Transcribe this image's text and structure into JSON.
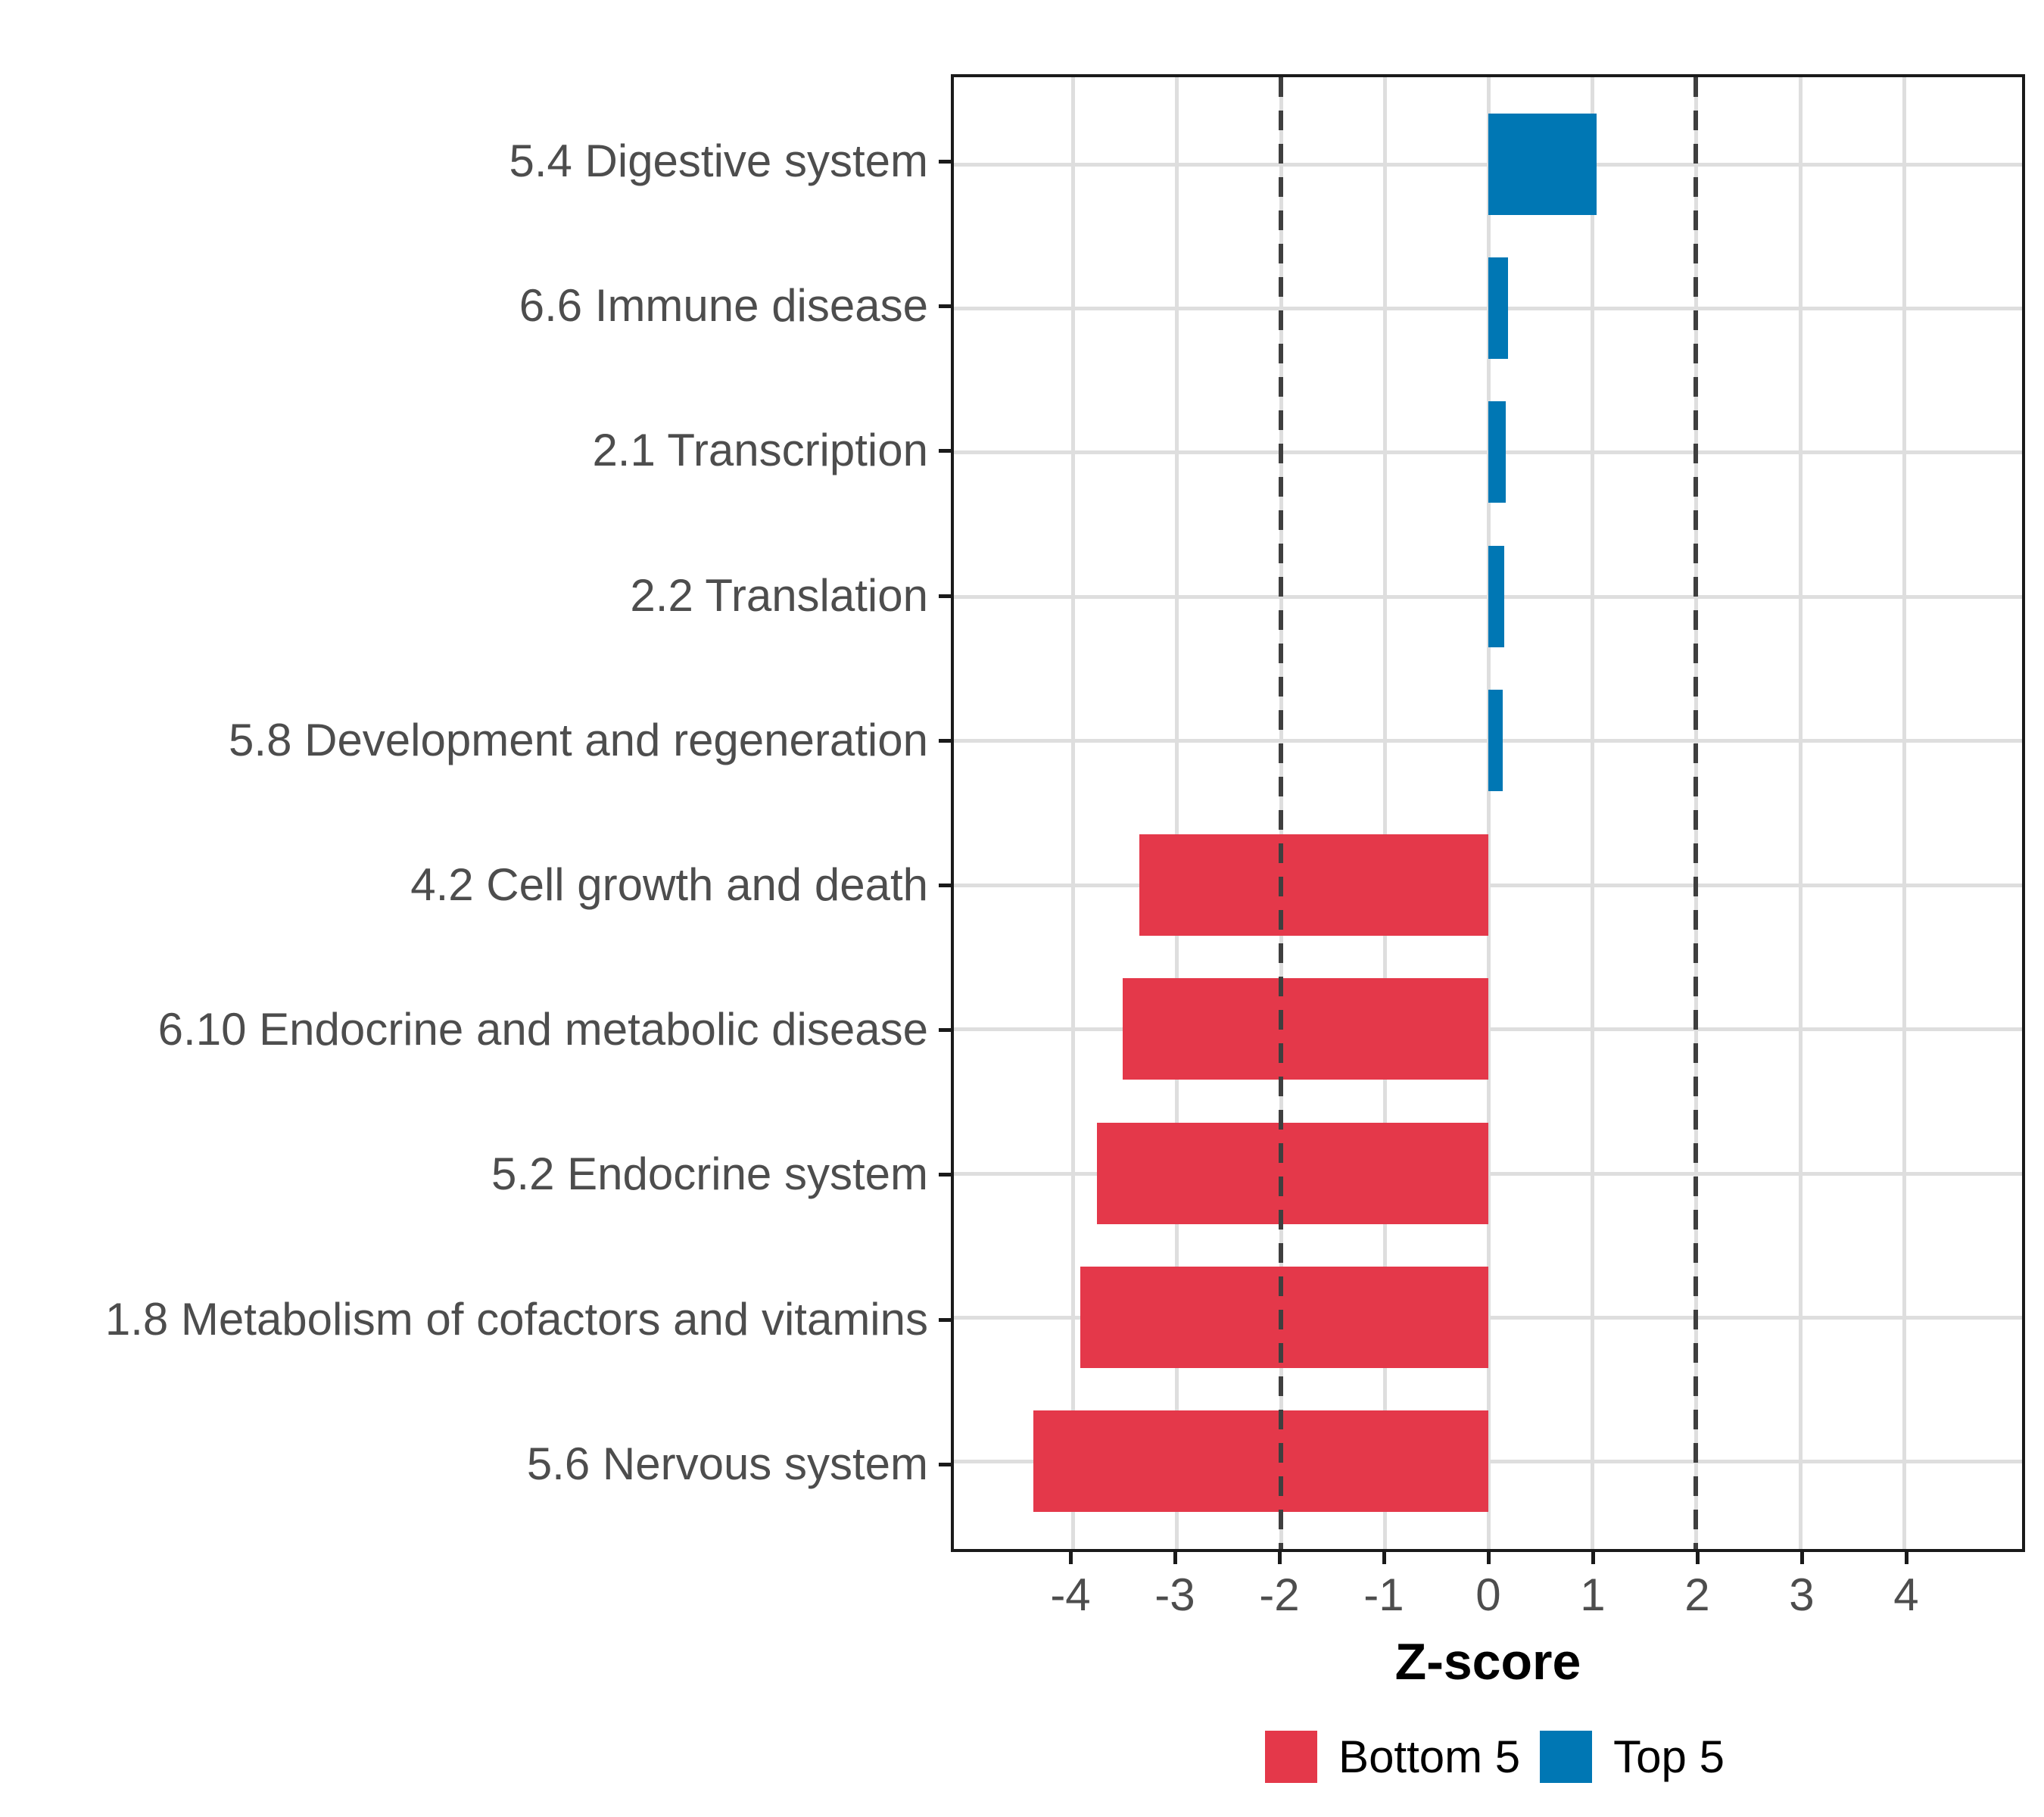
{
  "chart_data": {
    "type": "bar",
    "orientation": "horizontal",
    "title": "",
    "xlabel": "Z-score",
    "ylabel": "",
    "categories": [
      "5.4 Digestive system",
      "6.6 Immune disease",
      "2.1 Transcription",
      "2.2 Translation",
      "5.8 Development and regeneration",
      "4.2 Cell growth and death",
      "6.10 Endocrine and metabolic disease",
      "5.2 Endocrine system",
      "1.8 Metabolism of cofactors and vitamins",
      "5.6 Nervous system"
    ],
    "values": [
      1.04,
      0.19,
      0.17,
      0.15,
      0.14,
      -3.36,
      -3.52,
      -3.77,
      -3.93,
      -4.38
    ],
    "groups": [
      "Top 5",
      "Top 5",
      "Top 5",
      "Top 5",
      "Top 5",
      "Bottom 5",
      "Bottom 5",
      "Bottom 5",
      "Bottom 5",
      "Bottom 5"
    ],
    "series_colors": {
      "Top 5": "#0077b4",
      "Bottom 5": "#e4384a"
    },
    "xlim": [
      -5.145,
      5.138
    ],
    "x_ticks": [
      "-4",
      "-3",
      "-2",
      "-1",
      "0",
      "1",
      "2",
      "3",
      "4"
    ],
    "x_tick_values": [
      -4,
      -3,
      -2,
      -1,
      0,
      1,
      2,
      3,
      4
    ],
    "reference_lines": [
      -2,
      2
    ],
    "grid": "major-vertical-and-row-centers",
    "legend": {
      "position": "bottom",
      "entries": [
        {
          "label": "Bottom 5",
          "color": "#e4384a"
        },
        {
          "label": "Top 5",
          "color": "#0077b4"
        }
      ]
    },
    "style": {
      "panel_border_color": "#1a1a1a",
      "gridline_color": "#dedede",
      "reference_line_color": "#3f3f3f",
      "axis_text_color": "#4d4d4d",
      "background": "#ffffff"
    }
  }
}
